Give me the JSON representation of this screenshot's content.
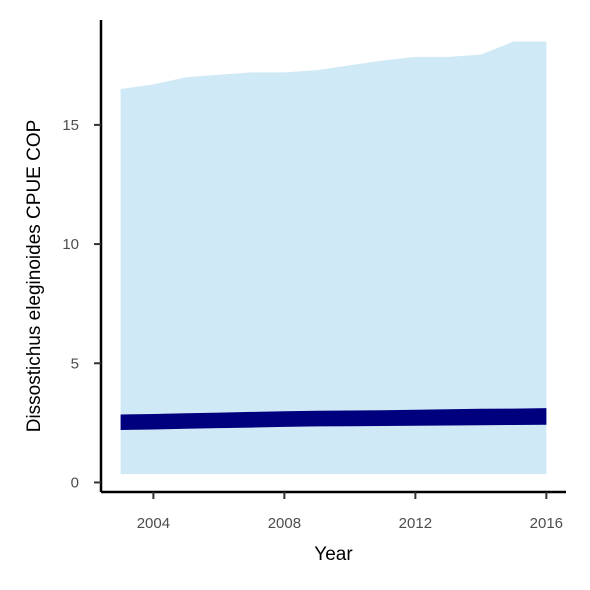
{
  "chart_data": {
    "type": "area",
    "xlabel": "Year",
    "ylabel": "Dissostichus eleginoides  CPUE COP",
    "xlim": [
      2002.4,
      2016.6
    ],
    "ylim": [
      -0.4,
      19.4
    ],
    "x_ticks": [
      2004,
      2008,
      2012,
      2016
    ],
    "y_ticks": [
      0,
      5,
      10,
      15
    ],
    "grid": false,
    "legend": "none",
    "colors": {
      "ribbon_outer": "#cfeaf6",
      "ribbon_inner": "#00007f",
      "axis": "#000000"
    },
    "series": [
      {
        "x": [
          2003,
          2004,
          2005,
          2006,
          2007,
          2008,
          2009,
          2010,
          2011,
          2012,
          2013,
          2014,
          2015,
          2016
        ],
        "lower": [
          0.35,
          0.35,
          0.35,
          0.35,
          0.35,
          0.35,
          0.35,
          0.35,
          0.35,
          0.35,
          0.35,
          0.35,
          0.35,
          0.35
        ],
        "upper": [
          16.5,
          16.7,
          17.0,
          17.1,
          17.2,
          17.2,
          17.3,
          17.5,
          17.7,
          17.85,
          17.85,
          17.95,
          18.5,
          18.5
        ]
      },
      {
        "x": [
          2003,
          2004,
          2005,
          2006,
          2007,
          2008,
          2009,
          2010,
          2011,
          2012,
          2013,
          2014,
          2015,
          2016
        ],
        "lower": [
          2.2,
          2.22,
          2.25,
          2.28,
          2.3,
          2.33,
          2.35,
          2.36,
          2.37,
          2.38,
          2.39,
          2.4,
          2.41,
          2.42
        ],
        "upper": [
          2.85,
          2.87,
          2.9,
          2.93,
          2.96,
          2.99,
          3.01,
          3.02,
          3.03,
          3.05,
          3.07,
          3.09,
          3.1,
          3.12
        ]
      }
    ]
  }
}
